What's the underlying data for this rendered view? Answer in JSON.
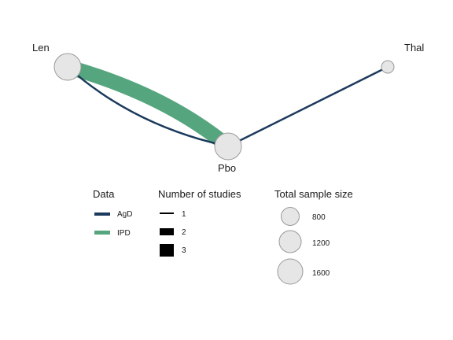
{
  "network": {
    "nodes": [
      {
        "id": "Len",
        "label": "Len",
        "sample_size": 1600
      },
      {
        "id": "Pbo",
        "label": "Pbo",
        "sample_size": 1600
      },
      {
        "id": "Thal",
        "label": "Thal",
        "sample_size": 700
      }
    ],
    "edges": [
      {
        "from": "Len",
        "to": "Pbo",
        "data": "IPD",
        "studies": 3
      },
      {
        "from": "Len",
        "to": "Pbo",
        "data": "AgD",
        "studies": 1
      },
      {
        "from": "Thal",
        "to": "Pbo",
        "data": "AgD",
        "studies": 1
      }
    ]
  },
  "legend": {
    "data": {
      "title": "Data",
      "items": [
        {
          "label": "AgD",
          "color": "#1b3a5c"
        },
        {
          "label": "IPD",
          "color": "#55a57e"
        }
      ]
    },
    "studies": {
      "title": "Number of studies",
      "items": [
        {
          "label": "1",
          "value": 1
        },
        {
          "label": "2",
          "value": 2
        },
        {
          "label": "3",
          "value": 3
        }
      ]
    },
    "sample": {
      "title": "Total sample size",
      "items": [
        {
          "label": "800",
          "value": 800
        },
        {
          "label": "1200",
          "value": 1200
        },
        {
          "label": "1600",
          "value": 1600
        }
      ]
    }
  },
  "colors": {
    "AgD": "#1b3a5c",
    "IPD": "#55a57e",
    "node_fill": "#e6e6e6",
    "node_stroke": "#9a9a9a"
  }
}
